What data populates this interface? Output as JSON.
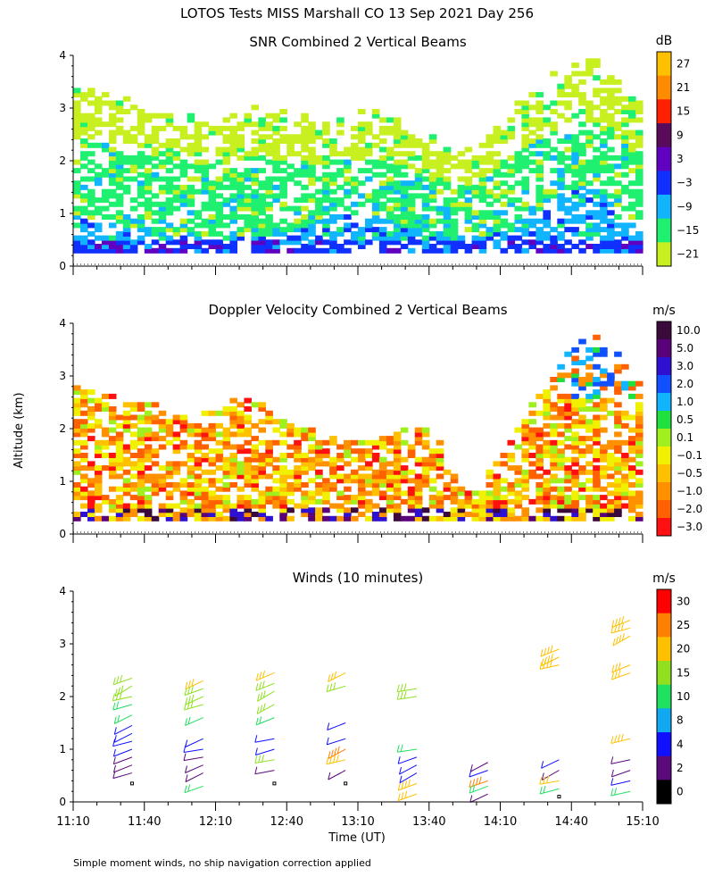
{
  "figure": {
    "title": "LOTOS Tests MISS Marshall CO  13 Sep 2021 Day 256",
    "footnote": "Simple moment winds, no ship navigation correction applied",
    "ylabel": "Altitude (km)",
    "xlabel": "Time (UT)",
    "x_ticks": [
      "11:10",
      "11:40",
      "12:10",
      "12:40",
      "13:10",
      "13:40",
      "14:10",
      "14:40",
      "15:10"
    ],
    "y_ticks": [
      "0",
      "1",
      "2",
      "3",
      "4"
    ]
  },
  "chart_data": [
    {
      "type": "heatmap",
      "title": "SNR Combined 2 Vertical Beams",
      "unit": "dB",
      "x_range_hours": [
        11.1667,
        15.1667
      ],
      "ylim": [
        0,
        4
      ],
      "colorbar": {
        "labels": [
          "27",
          "21",
          "15",
          "9",
          "3",
          "−3",
          "−9",
          "−15",
          "−21"
        ],
        "colors": [
          "#ffc000",
          "#ff8c00",
          "#ff2000",
          "#5a0a5a",
          "#6000c0",
          "#1030ff",
          "#10b4ff",
          "#20f070",
          "#c8f020"
        ]
      },
      "profile": [
        {
          "t": 11.2,
          "top": 3.3,
          "strong": 0.9
        },
        {
          "t": 11.5,
          "top": 3.0,
          "strong": 0.7
        },
        {
          "t": 11.8,
          "top": 2.8,
          "strong": 0.6
        },
        {
          "t": 12.1,
          "top": 2.6,
          "strong": 0.5
        },
        {
          "t": 12.4,
          "top": 2.8,
          "strong": 0.5
        },
        {
          "t": 12.7,
          "top": 2.7,
          "strong": 0.6
        },
        {
          "t": 13.0,
          "top": 2.6,
          "strong": 1.0
        },
        {
          "t": 13.3,
          "top": 2.8,
          "strong": 0.9
        },
        {
          "t": 13.6,
          "top": 2.4,
          "strong": 0.6
        },
        {
          "t": 13.9,
          "top": 2.0,
          "strong": 0.5
        },
        {
          "t": 14.2,
          "top": 2.6,
          "strong": 0.6
        },
        {
          "t": 14.5,
          "top": 3.5,
          "strong": 1.2
        },
        {
          "t": 14.8,
          "top": 3.9,
          "strong": 1.6
        },
        {
          "t": 15.1,
          "top": 3.0,
          "strong": 0.8
        }
      ]
    },
    {
      "type": "heatmap",
      "title": "Doppler Velocity Combined 2 Vertical Beams",
      "unit": "m/s",
      "x_range_hours": [
        11.1667,
        15.1667
      ],
      "ylim": [
        0,
        4
      ],
      "colorbar": {
        "labels": [
          "10.0",
          "5.0",
          "3.0",
          "2.0",
          "1.0",
          "0.5",
          "0.1",
          "−0.1",
          "−0.5",
          "−1.0",
          "−2.0",
          "−3.0"
        ],
        "colors": [
          "#3a0a3a",
          "#5a007a",
          "#3010d0",
          "#1050ff",
          "#10b4ff",
          "#20e040",
          "#a0f020",
          "#f0f000",
          "#ffc000",
          "#ff9000",
          "#ff6000",
          "#ff1010"
        ]
      },
      "profile": [
        {
          "t": 11.2,
          "top": 2.6
        },
        {
          "t": 11.6,
          "top": 2.4
        },
        {
          "t": 12.0,
          "top": 2.0
        },
        {
          "t": 12.4,
          "top": 2.4
        },
        {
          "t": 12.8,
          "top": 1.8
        },
        {
          "t": 13.2,
          "top": 1.6
        },
        {
          "t": 13.6,
          "top": 2.0
        },
        {
          "t": 14.0,
          "top": 0.6
        },
        {
          "t": 14.4,
          "top": 2.4
        },
        {
          "t": 14.8,
          "top": 3.7
        },
        {
          "t": 15.1,
          "top": 2.9
        }
      ]
    },
    {
      "type": "scatter",
      "title": "Winds (10 minutes)",
      "unit": "m/s",
      "x_range_hours": [
        11.1667,
        15.1667
      ],
      "ylim": [
        0,
        4
      ],
      "colorbar": {
        "labels": [
          "30",
          "25",
          "20",
          "15",
          "10",
          "8",
          "4",
          "2",
          "0"
        ],
        "colors": [
          "#ff0000",
          "#ff8000",
          "#ffc000",
          "#90e020",
          "#20e060",
          "#10a8f0",
          "#1010ff",
          "#5a0a7a",
          "#000000"
        ]
      },
      "columns": [
        {
          "time": 11.58,
          "bins": [
            {
              "alt": 2.35,
              "speed": 16
            },
            {
              "alt": 2.2,
              "speed": 15
            },
            {
              "alt": 2.0,
              "speed": 15
            },
            {
              "alt": 1.85,
              "speed": 14
            },
            {
              "alt": 1.65,
              "speed": 12
            },
            {
              "alt": 1.45,
              "speed": 4
            },
            {
              "alt": 1.3,
              "speed": 4
            },
            {
              "alt": 1.15,
              "speed": 4
            },
            {
              "alt": 1.0,
              "speed": 4
            },
            {
              "alt": 0.85,
              "speed": 3
            },
            {
              "alt": 0.7,
              "speed": 3
            },
            {
              "alt": 0.55,
              "speed": 3
            },
            {
              "alt": 0.35,
              "speed": 0
            }
          ]
        },
        {
          "time": 12.08,
          "bins": [
            {
              "alt": 2.3,
              "speed": 20
            },
            {
              "alt": 2.15,
              "speed": 15
            },
            {
              "alt": 2.0,
              "speed": 15
            },
            {
              "alt": 1.85,
              "speed": 15
            },
            {
              "alt": 1.6,
              "speed": 12
            },
            {
              "alt": 1.2,
              "speed": 4
            },
            {
              "alt": 1.0,
              "speed": 4
            },
            {
              "alt": 0.85,
              "speed": 3
            },
            {
              "alt": 0.7,
              "speed": 3
            },
            {
              "alt": 0.55,
              "speed": 3
            },
            {
              "alt": 0.3,
              "speed": 10
            }
          ]
        },
        {
          "time": 12.58,
          "bins": [
            {
              "alt": 2.45,
              "speed": 20
            },
            {
              "alt": 2.25,
              "speed": 15
            },
            {
              "alt": 2.1,
              "speed": 15
            },
            {
              "alt": 1.85,
              "speed": 15
            },
            {
              "alt": 1.6,
              "speed": 14
            },
            {
              "alt": 1.2,
              "speed": 4
            },
            {
              "alt": 1.0,
              "speed": 5
            },
            {
              "alt": 0.8,
              "speed": 18
            },
            {
              "alt": 0.6,
              "speed": 3
            },
            {
              "alt": 0.35,
              "speed": 0
            }
          ]
        },
        {
          "time": 13.08,
          "bins": [
            {
              "alt": 2.45,
              "speed": 20
            },
            {
              "alt": 2.2,
              "speed": 16
            },
            {
              "alt": 1.5,
              "speed": 4
            },
            {
              "alt": 1.2,
              "speed": 4
            },
            {
              "alt": 1.0,
              "speed": 25
            },
            {
              "alt": 0.8,
              "speed": 22
            },
            {
              "alt": 0.6,
              "speed": 3
            },
            {
              "alt": 0.35,
              "speed": 0
            }
          ]
        },
        {
          "time": 13.58,
          "bins": [
            {
              "alt": 2.15,
              "speed": 17
            },
            {
              "alt": 2.0,
              "speed": 16
            },
            {
              "alt": 1.0,
              "speed": 12
            },
            {
              "alt": 0.85,
              "speed": 5
            },
            {
              "alt": 0.7,
              "speed": 4
            },
            {
              "alt": 0.55,
              "speed": 4
            },
            {
              "alt": 0.35,
              "speed": 22
            },
            {
              "alt": 0.15,
              "speed": 20
            }
          ]
        },
        {
          "time": 14.08,
          "bins": [
            {
              "alt": 0.75,
              "speed": 3
            },
            {
              "alt": 0.6,
              "speed": 4
            },
            {
              "alt": 0.4,
              "speed": 25
            },
            {
              "alt": 0.3,
              "speed": 10
            },
            {
              "alt": 0.15,
              "speed": 3
            }
          ]
        },
        {
          "time": 14.58,
          "bins": [
            {
              "alt": 2.9,
              "speed": 22
            },
            {
              "alt": 2.75,
              "speed": 22
            },
            {
              "alt": 2.6,
              "speed": 22
            },
            {
              "alt": 0.8,
              "speed": 4
            },
            {
              "alt": 0.6,
              "speed": 3
            },
            {
              "alt": 0.4,
              "speed": 20
            },
            {
              "alt": 0.25,
              "speed": 10
            },
            {
              "alt": 0.1,
              "speed": 0
            }
          ]
        },
        {
          "time": 15.08,
          "bins": [
            {
              "alt": 3.45,
              "speed": 24
            },
            {
              "alt": 3.3,
              "speed": 22
            },
            {
              "alt": 3.15,
              "speed": 22
            },
            {
              "alt": 2.6,
              "speed": 20
            },
            {
              "alt": 2.45,
              "speed": 20
            },
            {
              "alt": 1.2,
              "speed": 24
            },
            {
              "alt": 0.8,
              "speed": 3
            },
            {
              "alt": 0.6,
              "speed": 2
            },
            {
              "alt": 0.4,
              "speed": 7
            },
            {
              "alt": 0.2,
              "speed": 10
            }
          ]
        }
      ]
    }
  ]
}
